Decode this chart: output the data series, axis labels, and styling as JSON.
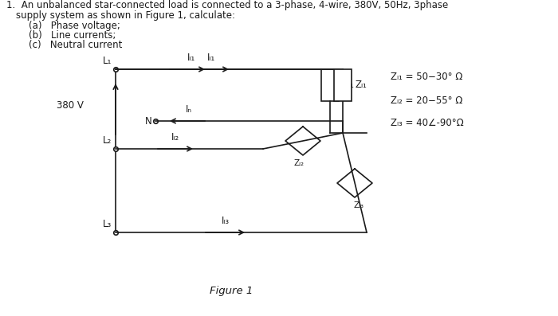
{
  "figure_label": "Figure 1",
  "voltage_label": "380 V",
  "L1_label": "L₁",
  "L2_label": "L₂",
  "L3_label": "L₃",
  "N_label": "N",
  "IL1_label": "Iₗ₁",
  "IL2_label": "Iₗ₂",
  "IL3_label": "Iₗ₃",
  "IN_label": "Iₙ",
  "ZL1_box_label": "Zₗ₁",
  "ZL2_box_label": "Zₗ₂",
  "ZL3_box_label": "Zₗ₃",
  "ZL1_eq": "Zₗ₁ = 50−30° Ω",
  "ZL2_eq": "Zₗ₂ = 20−55° Ω",
  "ZL3_eq": "Zₗ₃ = 40∠-90°Ω",
  "line1": "1.  An unbalanced star-connected load is connected to a 3-phase, 4-wire, 380V, 50Hz, 3phase",
  "line2": "supply system as shown in Figure 1, calculate:",
  "line3a": "(a)   Phase voltage;",
  "line3b": "(b)   Line currents;",
  "line3c": "(c)   Neutral current",
  "bg_color": "#ffffff",
  "line_color": "#1a1a1a",
  "text_color": "#1a1a1a",
  "font_size_main": 8.5,
  "font_size_labels": 8.5,
  "font_size_eq": 8.5,
  "font_size_figure": 9.5
}
